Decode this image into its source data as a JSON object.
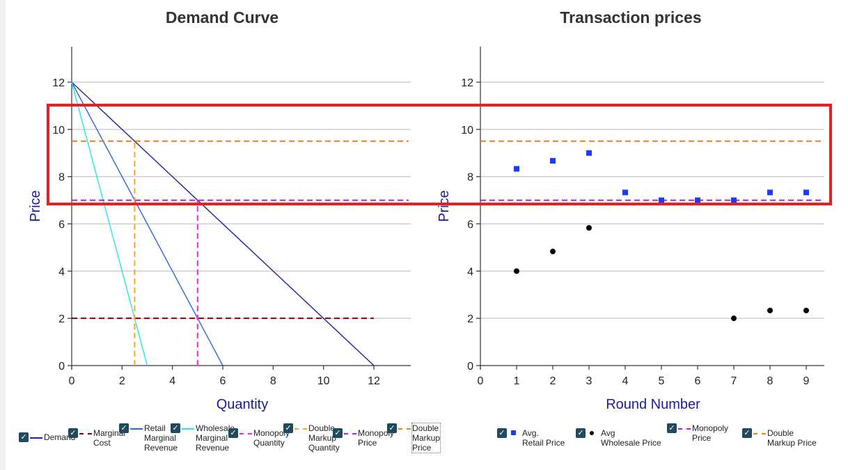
{
  "colors": {
    "demand": "#2222a8",
    "marginal_cost": "#8b0000",
    "retail_mr": "#2a63e6",
    "wholesale_mr": "#22e6ee",
    "monopoly_quantity": "#ff22dd",
    "double_markup_quantity": "#f5a623",
    "monopoly_price": "#a020f0",
    "double_markup_price": "#e8801c",
    "avg_retail": "#1a3cff",
    "avg_wholesale": "#000000",
    "highlight": "#ee1c1c"
  },
  "chart_data": [
    {
      "id": "demand",
      "type": "line",
      "title": "Demand Curve",
      "xlabel": "Quantity",
      "ylabel": "Price",
      "xlim": [
        0,
        13.5
      ],
      "ylim": [
        0,
        13.5
      ],
      "xticks": [
        0,
        2,
        4,
        6,
        8,
        10,
        12
      ],
      "yticks": [
        0,
        2,
        4,
        6,
        8,
        10,
        12
      ],
      "grid": true,
      "series": [
        {
          "name": "Demand",
          "style": "solid",
          "points": [
            [
              0,
              12
            ],
            [
              12,
              0
            ]
          ]
        },
        {
          "name": "Marginal Cost",
          "style": "dashed",
          "points": [
            [
              0,
              2
            ],
            [
              12,
              2
            ]
          ]
        },
        {
          "name": "Retail Marginal Revenue",
          "style": "solid",
          "points": [
            [
              0,
              12
            ],
            [
              6,
              0
            ]
          ]
        },
        {
          "name": "Wholesale Marginal Revenue",
          "style": "solid",
          "points": [
            [
              0,
              12
            ],
            [
              3,
              0
            ]
          ]
        },
        {
          "name": "Monopoly Quantity",
          "style": "dashed",
          "points": [
            [
              5,
              0
            ],
            [
              5,
              7
            ]
          ]
        },
        {
          "name": "Double Markup Quantity",
          "style": "dashed",
          "points": [
            [
              2.5,
              0
            ],
            [
              2.5,
              9.5
            ]
          ]
        },
        {
          "name": "Monopoly Price",
          "style": "dashed",
          "points": [
            [
              0,
              7
            ],
            [
              13.5,
              7
            ]
          ]
        },
        {
          "name": "Double Markup Price",
          "style": "dashed",
          "points": [
            [
              0,
              9.5
            ],
            [
              13.5,
              9.5
            ]
          ]
        }
      ]
    },
    {
      "id": "transaction",
      "type": "scatter",
      "title": "Transaction prices",
      "xlabel": "Round Number",
      "ylabel": "Price",
      "xlim": [
        0,
        9.5
      ],
      "ylim": [
        0,
        13.5
      ],
      "xticks": [
        0,
        1,
        2,
        3,
        4,
        5,
        6,
        7,
        8,
        9
      ],
      "yticks": [
        0,
        2,
        4,
        6,
        8,
        10,
        12
      ],
      "grid": true,
      "series": [
        {
          "name": "Avg. Retail Price",
          "marker": "square",
          "x": [
            1,
            2,
            3,
            4,
            5,
            6,
            7,
            8,
            9
          ],
          "y": [
            8.33,
            8.67,
            9.0,
            7.33,
            7.0,
            7.0,
            7.0,
            7.33,
            7.33
          ]
        },
        {
          "name": "Avg Wholesale Price",
          "marker": "circle",
          "x": [
            1,
            2,
            3,
            7,
            8,
            9
          ],
          "y": [
            4.0,
            4.83,
            5.83,
            2.0,
            2.33,
            2.33
          ]
        }
      ],
      "reference_lines": [
        {
          "name": "Monopoly Price",
          "y": 7
        },
        {
          "name": "Double Markup Price",
          "y": 9.5
        }
      ]
    }
  ],
  "legend_left": [
    {
      "key": "demand",
      "label": "Demand",
      "swatch": "line"
    },
    {
      "key": "marginal_cost",
      "label": "Marginal\nCost",
      "swatch": "dash"
    },
    {
      "key": "retail_mr",
      "label": "Retail\nMarginal\nRevenue",
      "swatch": "line"
    },
    {
      "key": "wholesale_mr",
      "label": "Wholesale\nMarginal\nRevenue",
      "swatch": "line"
    },
    {
      "key": "monopoly_quantity",
      "label": "Monopoly\nQuantity",
      "swatch": "dash"
    },
    {
      "key": "double_markup_quantity",
      "label": "Double\nMarkup\nQuantity",
      "swatch": "dash"
    },
    {
      "key": "monopoly_price",
      "label": "Monopoly\nPrice",
      "swatch": "dash"
    },
    {
      "key": "double_markup_price",
      "label": "Double\nMarkup\nPrice",
      "swatch": "dash"
    }
  ],
  "legend_right": [
    {
      "key": "avg_retail",
      "label": "Avg.\nRetail Price",
      "swatch": "square"
    },
    {
      "key": "avg_wholesale",
      "label": "Avg\nWholesale Price",
      "swatch": "dot"
    },
    {
      "key": "monopoly_price",
      "label": "Monopoly\nPrice",
      "swatch": "dash"
    },
    {
      "key": "double_markup_price",
      "label": "Double\nMarkup Price",
      "swatch": "dash"
    }
  ],
  "checkbox_glyph": "✓"
}
